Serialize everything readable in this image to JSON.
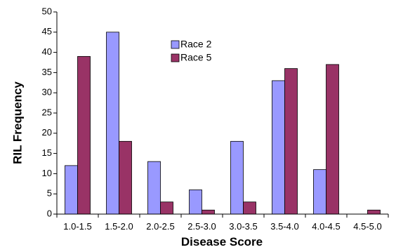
{
  "chart_data": {
    "type": "bar",
    "title": "",
    "xlabel": "Disease Score",
    "ylabel": "RIL Frequency",
    "ylim": [
      0,
      50
    ],
    "yticks": [
      0,
      5,
      10,
      15,
      20,
      25,
      30,
      35,
      40,
      45,
      50
    ],
    "categories": [
      "1.0-1.5",
      "1.5-2.0",
      "2.0-2.5",
      "2.5-3.0",
      "3.0-3.5",
      "3.5-4.0",
      "4.0-4.5",
      "4.5-5.0"
    ],
    "series": [
      {
        "name": "Race 2",
        "color": "#9999ff",
        "values": [
          12,
          45,
          13,
          6,
          18,
          33,
          11,
          0
        ]
      },
      {
        "name": "Race 5",
        "color": "#993366",
        "values": [
          39,
          18,
          3,
          1,
          3,
          36,
          37,
          1
        ]
      }
    ],
    "grid": false,
    "legend": "top-center"
  }
}
